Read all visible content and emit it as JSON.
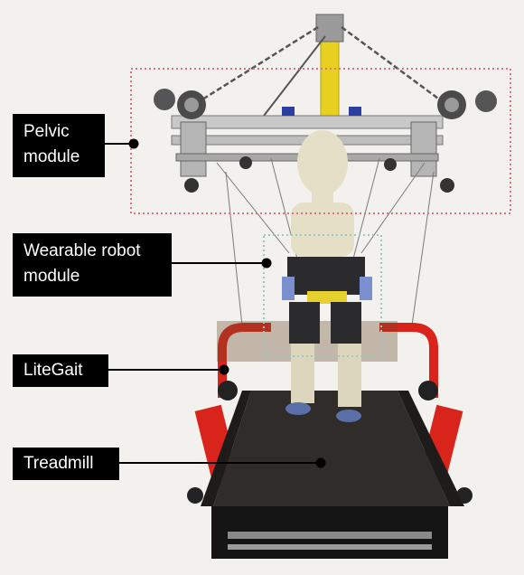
{
  "labels": {
    "pelvic": {
      "line1": "Pelvic",
      "line2": "module"
    },
    "wearable": {
      "line1": "Wearable robot",
      "line2": "module"
    },
    "litegait": {
      "text": "LiteGait"
    },
    "treadmill": {
      "text": "Treadmill"
    }
  },
  "colors": {
    "background": "#f3f1ee",
    "label_bg": "#000000",
    "label_text": "#ffffff",
    "pelvic_box": "#e0707e",
    "wearable_box": "#9fc6c4",
    "litegait_frame": "#d9241c",
    "upright": "#e8d020",
    "belt": "#2f2c2a"
  },
  "icons": {
    "callout_marker": "filled-dot"
  }
}
